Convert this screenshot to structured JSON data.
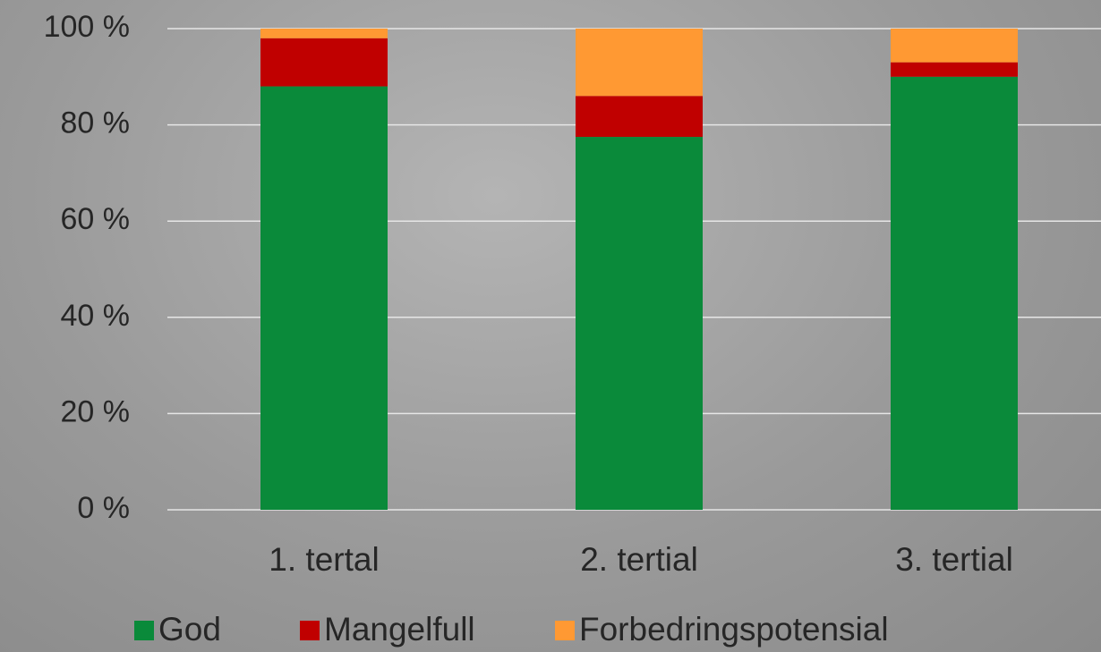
{
  "chart_data": {
    "type": "stacked_bar",
    "categories": [
      "1. tertal",
      "2. tertial",
      "3. tertial"
    ],
    "series": [
      {
        "name": "God",
        "color": "#0a8a3a",
        "values": [
          88,
          77.5,
          90
        ]
      },
      {
        "name": "Mangelfull",
        "color": "#c00000",
        "values": [
          10,
          8.5,
          3
        ]
      },
      {
        "name": "Forbedringspotensial",
        "color": "#ff9933",
        "values": [
          2,
          14,
          7
        ]
      }
    ],
    "ylim": [
      0,
      100
    ],
    "yticks": [
      {
        "value": 0,
        "label": "0 %"
      },
      {
        "value": 20,
        "label": "20 %"
      },
      {
        "value": 40,
        "label": "40 %"
      },
      {
        "value": 60,
        "label": "60 %"
      },
      {
        "value": 80,
        "label": "80 %"
      },
      {
        "value": 100,
        "label": "100 %"
      }
    ],
    "grid": true
  }
}
